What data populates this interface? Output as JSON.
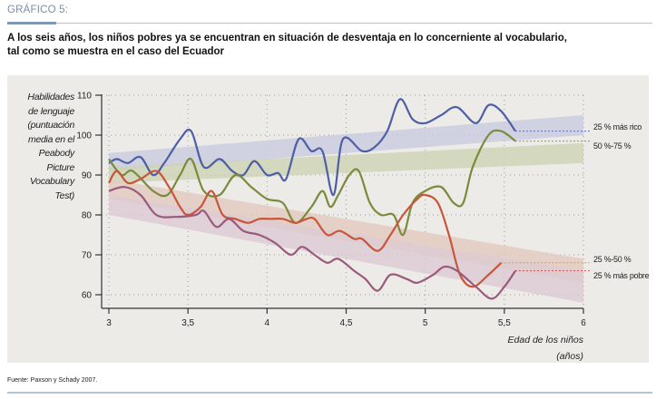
{
  "header": {
    "label": "GRÁFICO 5:",
    "title_line1": "A los seis años, los niños pobres ya se encuentran en situación de desventaja en lo concerniente al vocabulario,",
    "title_line2": "tal como se muestra en el caso del Ecuador"
  },
  "source": "Fuente: Paxson y Schady 2007.",
  "chart_data": {
    "type": "line",
    "title": "A los seis años, los niños pobres ya se encuentran en situación de desventaja en lo concerniente al vocabulario, tal como se muestra en el caso del Ecuador",
    "ylabel": "Habilidades de lenguaje (puntuación media en el Peabody Picture Vocabulary Test)",
    "ylabel_lines": [
      "Habilidades",
      "de lenguaje",
      "(puntuación",
      "media en el",
      "Peabody Picture",
      "Vocabulary Test)"
    ],
    "xlabel": "Edad de los niños (años)",
    "xlabel_lines": [
      "Edad de los niños",
      "(años)"
    ],
    "xlim": [
      3,
      6
    ],
    "ylim": [
      57,
      110
    ],
    "x_ticks": [
      3,
      3.5,
      4,
      4.5,
      5,
      5.5,
      6
    ],
    "x_tick_labels": [
      "3",
      "3,5",
      "4",
      "4,5",
      "5",
      "5,5",
      "6"
    ],
    "y_ticks": [
      60,
      70,
      80,
      90,
      100,
      110
    ],
    "y_tick_labels": [
      "60",
      "70",
      "80",
      "90",
      "100",
      "110"
    ],
    "grid": true,
    "legend": "right",
    "series": [
      {
        "name": "25 % más rico",
        "color": "#4e5fa5",
        "band_color": "#c9cbe0",
        "band": {
          "x": [
            3,
            6
          ],
          "low": [
            91,
            100
          ],
          "high": [
            95.5,
            105
          ]
        },
        "points": [
          [
            3.0,
            93
          ],
          [
            3.05,
            94
          ],
          [
            3.12,
            93
          ],
          [
            3.2,
            94.5
          ],
          [
            3.28,
            90
          ],
          [
            3.35,
            93
          ],
          [
            3.45,
            99
          ],
          [
            3.52,
            101
          ],
          [
            3.6,
            92
          ],
          [
            3.7,
            94
          ],
          [
            3.78,
            91
          ],
          [
            3.85,
            90
          ],
          [
            3.92,
            93.5
          ],
          [
            4.0,
            90
          ],
          [
            4.07,
            90.5
          ],
          [
            4.12,
            89
          ],
          [
            4.2,
            99
          ],
          [
            4.28,
            96
          ],
          [
            4.35,
            96
          ],
          [
            4.42,
            85
          ],
          [
            4.48,
            99
          ],
          [
            4.6,
            96
          ],
          [
            4.68,
            97
          ],
          [
            4.76,
            101
          ],
          [
            4.84,
            109
          ],
          [
            4.92,
            104
          ],
          [
            5.0,
            103
          ],
          [
            5.1,
            105
          ],
          [
            5.2,
            107
          ],
          [
            5.32,
            103
          ],
          [
            5.4,
            107.5
          ],
          [
            5.48,
            106
          ],
          [
            5.57,
            101
          ]
        ]
      },
      {
        "name": "50 %-75 %",
        "color": "#7a8b3c",
        "band_color": "#cdd3b4",
        "band": {
          "x": [
            3,
            6
          ],
          "low": [
            88,
            93
          ],
          "high": [
            92,
            98
          ]
        },
        "points": [
          [
            3.0,
            94
          ],
          [
            3.08,
            90
          ],
          [
            3.15,
            91
          ],
          [
            3.28,
            86
          ],
          [
            3.37,
            85
          ],
          [
            3.45,
            90
          ],
          [
            3.52,
            94
          ],
          [
            3.6,
            86
          ],
          [
            3.7,
            85
          ],
          [
            3.8,
            90
          ],
          [
            3.9,
            87
          ],
          [
            4.0,
            84
          ],
          [
            4.1,
            83
          ],
          [
            4.18,
            78
          ],
          [
            4.28,
            82
          ],
          [
            4.35,
            86
          ],
          [
            4.4,
            82
          ],
          [
            4.45,
            85
          ],
          [
            4.52,
            90
          ],
          [
            4.58,
            91
          ],
          [
            4.65,
            83
          ],
          [
            4.72,
            80
          ],
          [
            4.8,
            80
          ],
          [
            4.86,
            75
          ],
          [
            4.92,
            83
          ],
          [
            5.0,
            86
          ],
          [
            5.1,
            87
          ],
          [
            5.18,
            83
          ],
          [
            5.24,
            83
          ],
          [
            5.3,
            92
          ],
          [
            5.4,
            100
          ],
          [
            5.48,
            101
          ],
          [
            5.57,
            98.5
          ]
        ]
      },
      {
        "name": "25 %-50 %",
        "color": "#c8563a",
        "band_color": "#e3c9c0",
        "band": {
          "x": [
            3,
            6
          ],
          "low": [
            84,
            63
          ],
          "high": [
            89,
            69
          ]
        },
        "points": [
          [
            3.0,
            88
          ],
          [
            3.05,
            91
          ],
          [
            3.12,
            88
          ],
          [
            3.2,
            89
          ],
          [
            3.3,
            91
          ],
          [
            3.38,
            87
          ],
          [
            3.45,
            82
          ],
          [
            3.5,
            80
          ],
          [
            3.58,
            82
          ],
          [
            3.65,
            86
          ],
          [
            3.72,
            80
          ],
          [
            3.8,
            79
          ],
          [
            3.88,
            78
          ],
          [
            3.95,
            79
          ],
          [
            4.02,
            79
          ],
          [
            4.1,
            79
          ],
          [
            4.18,
            78
          ],
          [
            4.25,
            79
          ],
          [
            4.3,
            79
          ],
          [
            4.38,
            75
          ],
          [
            4.46,
            76
          ],
          [
            4.55,
            74
          ],
          [
            4.6,
            74
          ],
          [
            4.7,
            71
          ],
          [
            4.78,
            75
          ],
          [
            4.86,
            80
          ],
          [
            4.95,
            84
          ],
          [
            5.0,
            85
          ],
          [
            5.08,
            83
          ],
          [
            5.15,
            75
          ],
          [
            5.22,
            65
          ],
          [
            5.3,
            62
          ],
          [
            5.4,
            65
          ],
          [
            5.48,
            68
          ]
        ]
      },
      {
        "name": "25 % más pobre",
        "color": "#9a5a7c",
        "band_color": "#dccbd3",
        "band": {
          "x": [
            3,
            6
          ],
          "low": [
            80,
            58
          ],
          "high": [
            85,
            66
          ]
        },
        "points": [
          [
            3.0,
            86
          ],
          [
            3.1,
            87
          ],
          [
            3.2,
            85
          ],
          [
            3.3,
            80
          ],
          [
            3.42,
            79.5
          ],
          [
            3.55,
            80
          ],
          [
            3.6,
            81
          ],
          [
            3.68,
            77
          ],
          [
            3.76,
            79
          ],
          [
            3.85,
            76
          ],
          [
            3.95,
            75
          ],
          [
            4.05,
            73
          ],
          [
            4.15,
            70
          ],
          [
            4.22,
            72
          ],
          [
            4.3,
            70
          ],
          [
            4.38,
            68
          ],
          [
            4.45,
            69
          ],
          [
            4.55,
            66
          ],
          [
            4.62,
            64
          ],
          [
            4.7,
            61
          ],
          [
            4.78,
            65
          ],
          [
            4.88,
            64
          ],
          [
            4.95,
            63
          ],
          [
            5.05,
            65
          ],
          [
            5.12,
            67
          ],
          [
            5.2,
            66
          ],
          [
            5.32,
            62
          ],
          [
            5.42,
            59
          ],
          [
            5.5,
            62
          ],
          [
            5.57,
            66
          ]
        ]
      }
    ]
  }
}
